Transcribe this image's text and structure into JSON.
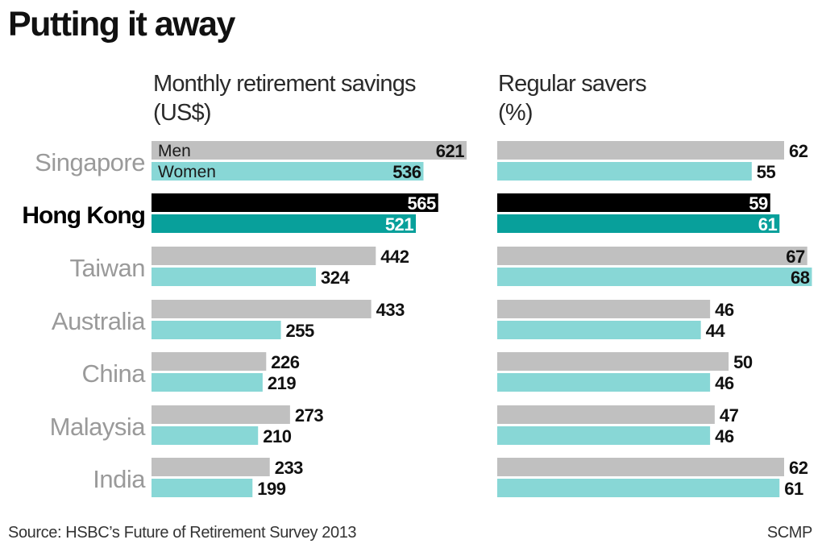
{
  "chart_data": [
    {
      "type": "bar",
      "title": "Putting it away",
      "subtitle": [
        "Monthly retirement savings",
        "(US$)"
      ],
      "categories": [
        "Singapore",
        "Hong Kong",
        "Taiwan",
        "Australia",
        "China",
        "Malaysia",
        "India"
      ],
      "highlight": "Hong Kong",
      "series": [
        {
          "name": "Men",
          "values": [
            621,
            565,
            442,
            433,
            226,
            273,
            233
          ]
        },
        {
          "name": "Women",
          "values": [
            536,
            521,
            324,
            255,
            219,
            210,
            199
          ]
        }
      ]
    },
    {
      "type": "bar",
      "subtitle": [
        "Regular savers",
        "(%)"
      ],
      "categories": [
        "Singapore",
        "Hong Kong",
        "Taiwan",
        "Australia",
        "China",
        "Malaysia",
        "India"
      ],
      "highlight": "Hong Kong",
      "series": [
        {
          "name": "Men",
          "values": [
            62,
            59,
            67,
            46,
            50,
            47,
            62
          ]
        },
        {
          "name": "Women",
          "values": [
            55,
            61,
            68,
            44,
            46,
            46,
            61
          ]
        }
      ]
    }
  ],
  "colors": {
    "men": "#c0c0c0",
    "women": "#88d7d6",
    "men_highlight": "#000000",
    "women_highlight": "#08a09b"
  },
  "footer": {
    "source": "Source: HSBC’s Future of Retirement Survey 2013",
    "credit": "SCMP"
  }
}
